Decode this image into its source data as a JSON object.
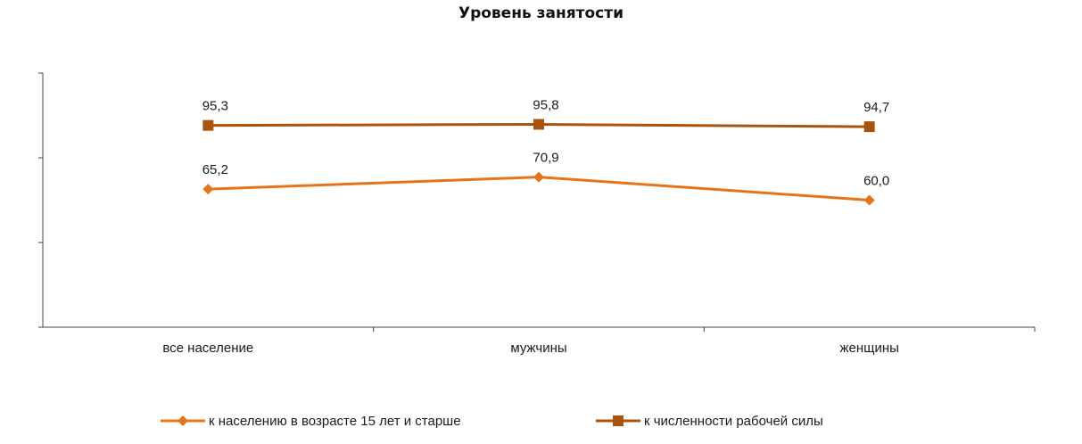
{
  "chart_data": {
    "type": "line",
    "title": "Уровень занятости",
    "categories": [
      "все население",
      "мужчины",
      "женщины"
    ],
    "ylim": [
      0,
      120
    ],
    "grid": false,
    "legend_position": "bottom",
    "series": [
      {
        "name": "к населению в возрасте 15 лет и старше",
        "values": [
          65.2,
          70.9,
          60.0
        ],
        "labels": [
          "65,2",
          "70,9",
          "60,0"
        ],
        "color": "#E8741A",
        "marker": "diamond"
      },
      {
        "name": "к численности рабочей силы",
        "values": [
          95.3,
          95.8,
          94.7
        ],
        "labels": [
          "95,3",
          "95,8",
          "94,7"
        ],
        "color": "#A85410",
        "marker": "square"
      }
    ]
  }
}
